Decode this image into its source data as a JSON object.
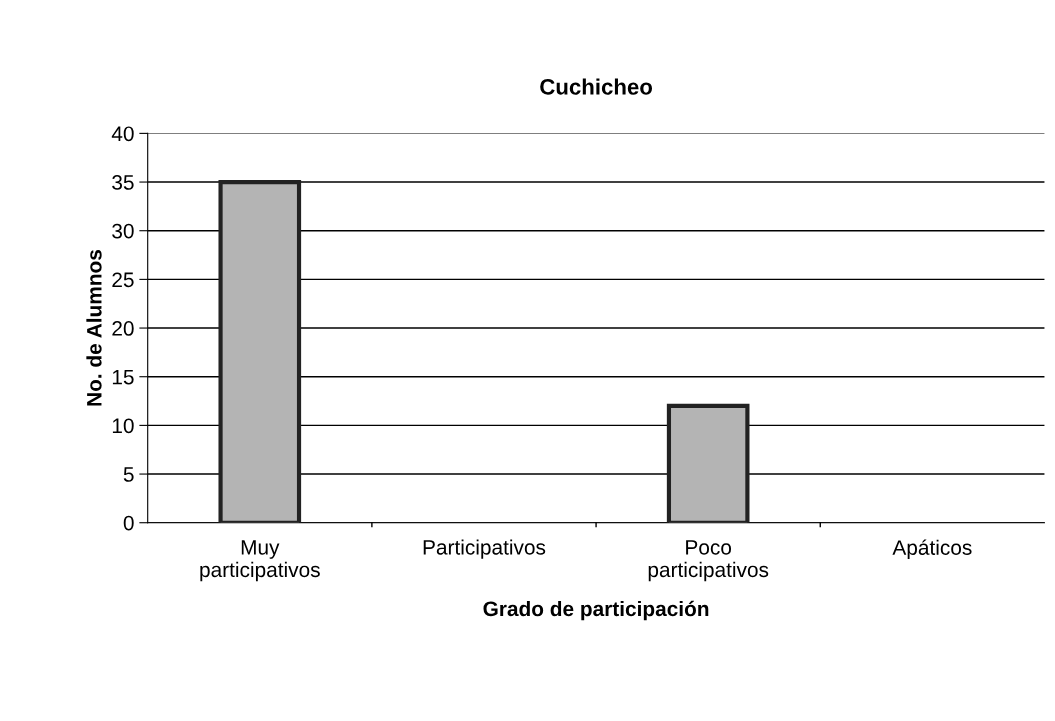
{
  "chart_data": {
    "type": "bar",
    "title": "Cuchicheo",
    "xlabel": "Grado de participación",
    "ylabel": "No. de Alumnos",
    "categories": [
      "Muy\nparticipativos",
      "Participativos",
      "Poco\nparticipativos",
      "Apáticos"
    ],
    "values": [
      35,
      0,
      12,
      0
    ],
    "color": "#b4b4b4",
    "ylim": [
      0,
      40
    ],
    "yticks": [
      0,
      5,
      10,
      15,
      20,
      25,
      30,
      35,
      40
    ],
    "grid": "y",
    "legend": false
  }
}
